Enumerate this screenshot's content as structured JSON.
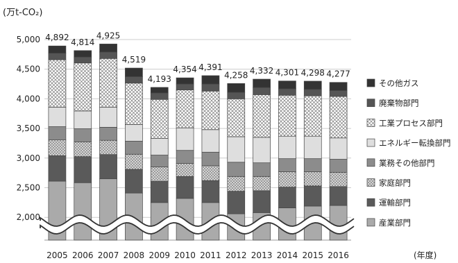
{
  "chart_data": {
    "type": "bar",
    "stacked": true,
    "unit_label": "(万t-CO₂)",
    "xlabel_suffix": "(年度)",
    "categories": [
      "2005",
      "2006",
      "2007",
      "2008",
      "2009",
      "2010",
      "2011",
      "2012",
      "2013",
      "2014",
      "2015",
      "2016"
    ],
    "totals": [
      4892,
      4814,
      4925,
      4519,
      4193,
      4354,
      4391,
      4258,
      4332,
      4301,
      4298,
      4277
    ],
    "total_labels": [
      "4,892",
      "4,814",
      "4,925",
      "4,519",
      "4,193",
      "4,354",
      "4,391",
      "4,258",
      "4,332",
      "4,301",
      "4,298",
      "4,277"
    ],
    "y_ticks": [
      "5,000",
      "4,500",
      "4,000",
      "3,500",
      "3,000",
      "2,500",
      "2,000"
    ],
    "y_range": [
      2000,
      5000
    ],
    "axis_break": true,
    "grid": true,
    "legend_position": "right",
    "series": [
      {
        "name": "産業部門",
        "fill": "#aaaaaa",
        "values": [
          2610,
          2585,
          2650,
          2410,
          2250,
          2320,
          2250,
          2060,
          2080,
          2160,
          2190,
          2200
        ]
      },
      {
        "name": "運輸部門",
        "fill": "#5a5a5a",
        "values": [
          430,
          440,
          410,
          400,
          360,
          370,
          370,
          380,
          370,
          350,
          340,
          320
        ]
      },
      {
        "name": "家庭部門",
        "fill": "#cfcfcf",
        "pattern": "dots",
        "values": [
          270,
          250,
          240,
          255,
          240,
          220,
          250,
          250,
          240,
          260,
          240,
          240
        ]
      },
      {
        "name": "業務その他部門",
        "fill": "#8c8c8c",
        "values": [
          220,
          220,
          220,
          220,
          200,
          220,
          230,
          240,
          230,
          220,
          220,
          220
        ]
      },
      {
        "name": "エネルギー転換部門",
        "fill": "#dedede",
        "values": [
          330,
          300,
          340,
          280,
          280,
          380,
          380,
          430,
          430,
          380,
          380,
          360
        ]
      },
      {
        "name": "工業プロセス部門",
        "fill": "#ffffff",
        "pattern": "xhatch",
        "values": [
          800,
          810,
          820,
          700,
          660,
          640,
          650,
          640,
          720,
          690,
          680,
          700
        ]
      },
      {
        "name": "廃棄物部門",
        "fill": "#555555",
        "values": [
          110,
          100,
          110,
          110,
          110,
          100,
          120,
          110,
          120,
          110,
          110,
          100
        ]
      },
      {
        "name": "その他ガス",
        "fill": "#333333",
        "values": [
          122,
          109,
          135,
          144,
          93,
          104,
          141,
          148,
          142,
          131,
          138,
          137
        ]
      }
    ]
  }
}
